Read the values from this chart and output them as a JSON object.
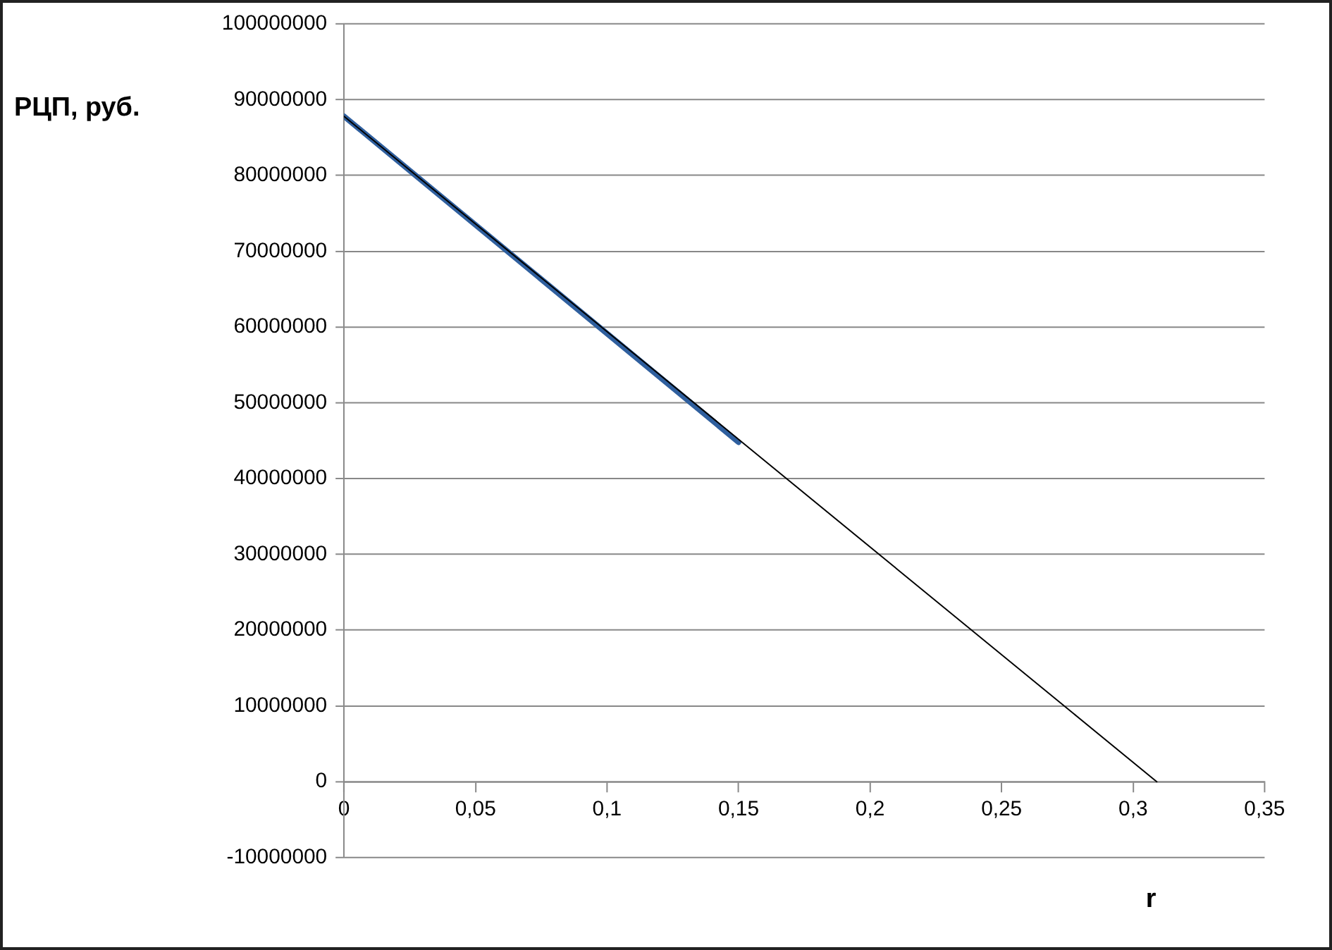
{
  "chart_data": {
    "type": "line",
    "ylabel": "РЦП, руб.",
    "xlabel": "r",
    "series": [
      {
        "color": "#2f5f9e",
        "x": [
          0,
          0.15
        ],
        "values": [
          87800000,
          44800000
        ]
      },
      {
        "color": "#000000",
        "x": [
          0,
          0.309
        ],
        "values": [
          87800000,
          0
        ]
      }
    ],
    "xlim": [
      0,
      0.35
    ],
    "xticks": [
      0,
      {
        "value": 0.05,
        "label": "0,05"
      },
      {
        "value": 0.1,
        "label": "0,1"
      },
      {
        "value": 0.15,
        "label": "0,15"
      },
      {
        "value": 0.2,
        "label": "0,2"
      },
      {
        "value": 0.25,
        "label": "0,25"
      },
      {
        "value": 0.3,
        "label": "0,3"
      },
      {
        "value": 0.35,
        "label": "0,35"
      }
    ],
    "ylim": [
      -10000000,
      100000000
    ],
    "yticks": [
      -10000000,
      0,
      10000000,
      20000000,
      30000000,
      40000000,
      50000000,
      60000000,
      70000000,
      80000000,
      90000000,
      100000000
    ],
    "grid": "y",
    "legend": false,
    "marker": "none",
    "line_style": "solid"
  }
}
